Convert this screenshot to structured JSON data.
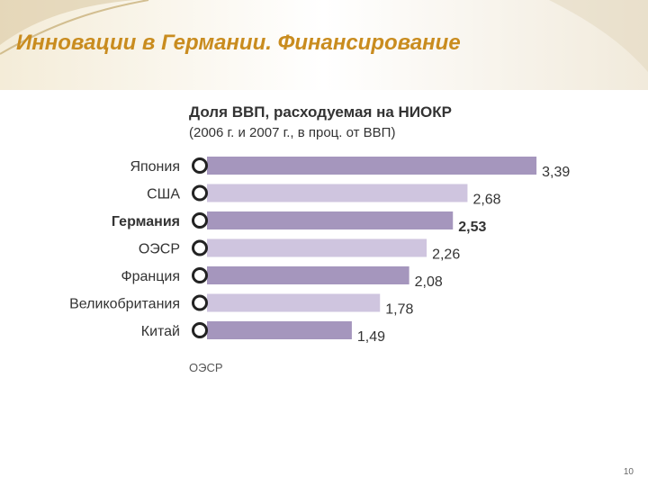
{
  "slide": {
    "title": "Инновации в Германии. Финансирование",
    "page_number": "10"
  },
  "colors": {
    "title": "#c98c1f",
    "bar_dark": "#a596bd",
    "bar_light": "#cfc5df",
    "label_text": "#333333"
  },
  "chart_data": {
    "type": "bar",
    "orientation": "horizontal",
    "title": "Доля ВВП, расходуемая на НИОКР",
    "subtitle": "(2006 г. и 2007 г., в проц. от ВВП)",
    "categories": [
      "Япония",
      "США",
      "Германия",
      "ОЭСР",
      "Франция",
      "Великобритания",
      "Китай"
    ],
    "value_labels": [
      "3,39",
      "2,68",
      "2,53",
      "2,26",
      "2,08",
      "1,78",
      "1,49"
    ],
    "values": [
      3.39,
      2.68,
      2.53,
      2.26,
      2.08,
      1.78,
      1.49
    ],
    "highlighted_category": "Германия",
    "source": "ОЭСР",
    "grid": false
  }
}
